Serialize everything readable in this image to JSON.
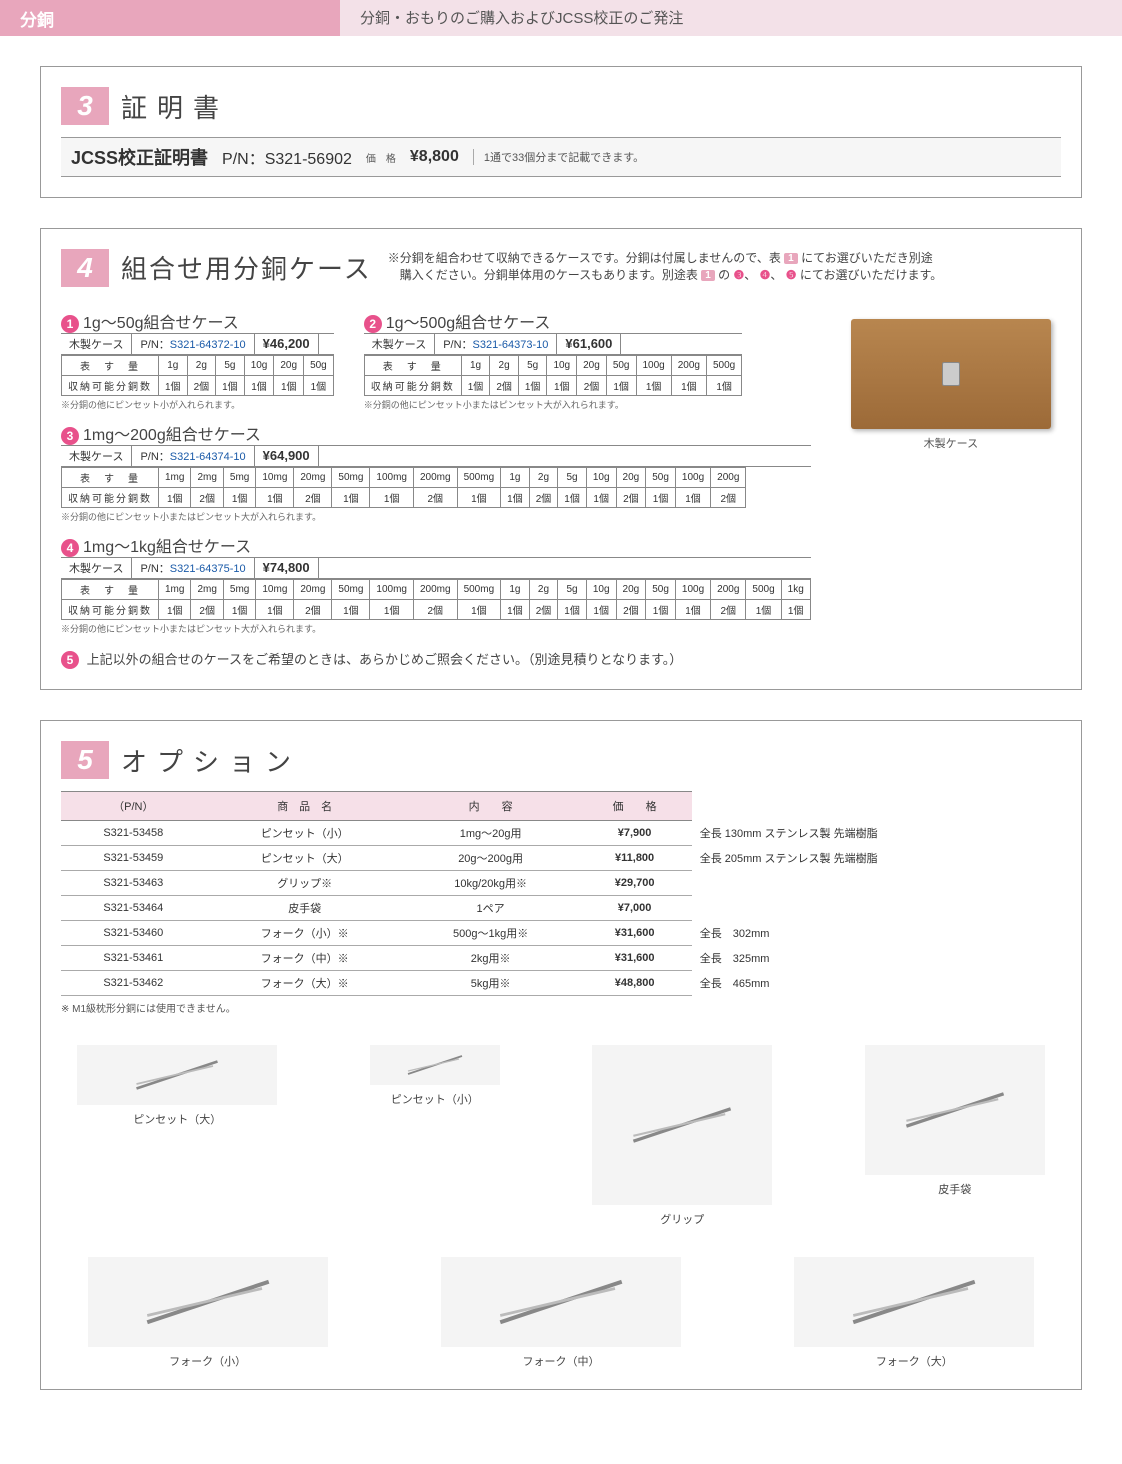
{
  "header": {
    "left": "分銅",
    "right": "分銅・おもりのご購入およびJCSS校正のご発注"
  },
  "sec3": {
    "num": "3",
    "title": "証明書",
    "name": "JCSS校正証明書",
    "pn": "P/N：S321-56902",
    "price_label": "価　格",
    "price": "¥8,800",
    "note": "1通で33個分まで記載できます。"
  },
  "sec4": {
    "num": "4",
    "title": "組合せ用分銅ケース",
    "desc1": "※分銅を組合わせて収納できるケースです。分銅は付属しませんので、表",
    "desc1b": "にてお選びいただき別途",
    "desc2": "　購入ください。分銅単体用のケースもあります。別途表",
    "desc2b": "の",
    "desc2c": "にてお選びいただけます。",
    "badge1": "1",
    "circles": [
      "❸",
      "❹",
      "❺"
    ],
    "wood_caption": "木製ケース",
    "cases": [
      {
        "bullet": "1",
        "title": "1g～50g組合せケース",
        "case_label": "木製ケース",
        "pn_label": "P/N：",
        "pn": "S321-64372-10",
        "price": "¥46,200",
        "head": "表　す　量",
        "cols": [
          "1g",
          "2g",
          "5g",
          "10g",
          "20g",
          "50g"
        ],
        "row_label": "収納可能分銅数",
        "vals": [
          "1個",
          "2個",
          "1個",
          "1個",
          "1個",
          "1個"
        ],
        "foot": "※分銅の他にピンセット小が入れられます。"
      },
      {
        "bullet": "2",
        "title": "1g～500g組合せケース",
        "case_label": "木製ケース",
        "pn_label": "P/N：",
        "pn": "S321-64373-10",
        "price": "¥61,600",
        "head": "表　す　量",
        "cols": [
          "1g",
          "2g",
          "5g",
          "10g",
          "20g",
          "50g",
          "100g",
          "200g",
          "500g"
        ],
        "row_label": "収納可能分銅数",
        "vals": [
          "1個",
          "2個",
          "1個",
          "1個",
          "2個",
          "1個",
          "1個",
          "1個",
          "1個"
        ],
        "foot": "※分銅の他にピンセット小またはピンセット大が入れられます。"
      },
      {
        "bullet": "3",
        "title": "1mg～200g組合せケース",
        "case_label": "木製ケース",
        "pn_label": "P/N：",
        "pn": "S321-64374-10",
        "price": "¥64,900",
        "head": "表　す　量",
        "cols": [
          "1mg",
          "2mg",
          "5mg",
          "10mg",
          "20mg",
          "50mg",
          "100mg",
          "200mg",
          "500mg",
          "1g",
          "2g",
          "5g",
          "10g",
          "20g",
          "50g",
          "100g",
          "200g"
        ],
        "row_label": "収納可能分銅数",
        "vals": [
          "1個",
          "2個",
          "1個",
          "1個",
          "2個",
          "1個",
          "1個",
          "2個",
          "1個",
          "1個",
          "2個",
          "1個",
          "1個",
          "2個",
          "1個",
          "1個",
          "2個"
        ],
        "foot": "※分銅の他にピンセット小またはピンセット大が入れられます。"
      },
      {
        "bullet": "4",
        "title": "1mg～1kg組合せケース",
        "case_label": "木製ケース",
        "pn_label": "P/N：",
        "pn": "S321-64375-10",
        "price": "¥74,800",
        "head": "表　す　量",
        "cols": [
          "1mg",
          "2mg",
          "5mg",
          "10mg",
          "20mg",
          "50mg",
          "100mg",
          "200mg",
          "500mg",
          "1g",
          "2g",
          "5g",
          "10g",
          "20g",
          "50g",
          "100g",
          "200g",
          "500g",
          "1kg"
        ],
        "row_label": "収納可能分銅数",
        "vals": [
          "1個",
          "2個",
          "1個",
          "1個",
          "2個",
          "1個",
          "1個",
          "2個",
          "1個",
          "1個",
          "2個",
          "1個",
          "1個",
          "2個",
          "1個",
          "1個",
          "2個",
          "1個",
          "1個"
        ],
        "foot": "※分銅の他にピンセット小またはピンセット大が入れられます。"
      }
    ],
    "footnote_bullet": "5",
    "footnote": "上記以外の組合せのケースをご希望のときは、あらかじめご照会ください。（別途見積りとなります。）"
  },
  "sec5": {
    "num": "5",
    "title": "オプション",
    "th": [
      "（P/N）",
      "商　品　名",
      "内　　容",
      "価　　格",
      ""
    ],
    "rows": [
      {
        "pn": "S321-53458",
        "name": "ピンセット（小）",
        "spec": "1mg～20g用",
        "price": "¥7,900",
        "remark": "全長 130mm ステンレス製 先端樹脂"
      },
      {
        "pn": "S321-53459",
        "name": "ピンセット（大）",
        "spec": "20g～200g用",
        "price": "¥11,800",
        "remark": "全長 205mm ステンレス製 先端樹脂"
      },
      {
        "pn": "S321-53463",
        "name": "グリップ※",
        "spec": "10kg/20kg用※",
        "price": "¥29,700",
        "remark": ""
      },
      {
        "pn": "S321-53464",
        "name": "皮手袋",
        "spec": "1ペア",
        "price": "¥7,000",
        "remark": ""
      },
      {
        "pn": "S321-53460",
        "name": "フォーク（小）※",
        "spec": "500g～1kg用※",
        "price": "¥31,600",
        "remark": "全長　302mm"
      },
      {
        "pn": "S321-53461",
        "name": "フォーク（中）※",
        "spec": "2kg用※",
        "price": "¥31,600",
        "remark": "全長　325mm"
      },
      {
        "pn": "S321-53462",
        "name": "フォーク（大）※",
        "spec": "5kg用※",
        "price": "¥48,800",
        "remark": "全長　465mm"
      }
    ],
    "note": "※ M1級枕形分銅には使用できません。",
    "gallery": [
      {
        "cap": "ピンセット（大）",
        "cls": "tweezer-big"
      },
      {
        "cap": "ピンセット（小）",
        "cls": "tweezer-small"
      },
      {
        "cap": "グリップ",
        "cls": "grip"
      },
      {
        "cap": "皮手袋",
        "cls": "gloves"
      },
      {
        "cap": "フォーク（小）",
        "cls": "fork"
      },
      {
        "cap": "フォーク（中）",
        "cls": "fork"
      },
      {
        "cap": "フォーク（大）",
        "cls": "fork"
      }
    ]
  }
}
